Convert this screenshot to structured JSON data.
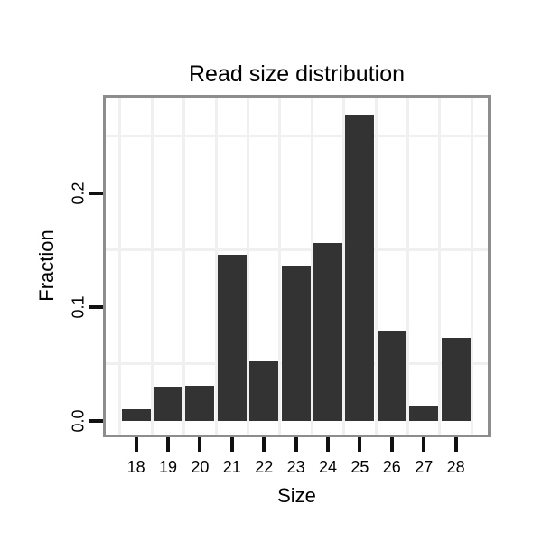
{
  "chart": {
    "title": "Read size distribution",
    "xlabel": "Size",
    "ylabel": "Fraction"
  },
  "chart_data": {
    "type": "bar",
    "title": "Read size distribution",
    "xlabel": "Size",
    "ylabel": "Fraction",
    "categories": [
      18,
      19,
      20,
      21,
      22,
      23,
      24,
      25,
      26,
      27,
      28
    ],
    "values": [
      0.01,
      0.03,
      0.031,
      0.146,
      0.052,
      0.136,
      0.156,
      0.269,
      0.079,
      0.013,
      0.073
    ],
    "x_tick_labels": [
      "18",
      "19",
      "20",
      "21",
      "22",
      "23",
      "24",
      "25",
      "26",
      "27",
      "28"
    ],
    "y_tick_labels": [
      "0.0",
      "0.1",
      "0.2"
    ],
    "y_tick_values": [
      0.0,
      0.1,
      0.2
    ],
    "xlim": [
      17.05,
      29.0
    ],
    "ylim": [
      -0.012,
      0.284
    ],
    "bar_width": 0.9,
    "grid": "minor-gridlines-only",
    "legend": "none",
    "minor_x": [
      17.5,
      18.5,
      19.5,
      20.5,
      21.5,
      22.5,
      23.5,
      24.5,
      25.5,
      26.5,
      27.5,
      28.5
    ],
    "minor_y": [
      0.05,
      0.15,
      0.25
    ],
    "colors": {
      "bar_fill": "#333333",
      "panel_border": "#8d8d8d",
      "gridline": "#f0f0f0",
      "tick": "#111111",
      "text": "#000000",
      "background": "#ffffff"
    }
  }
}
